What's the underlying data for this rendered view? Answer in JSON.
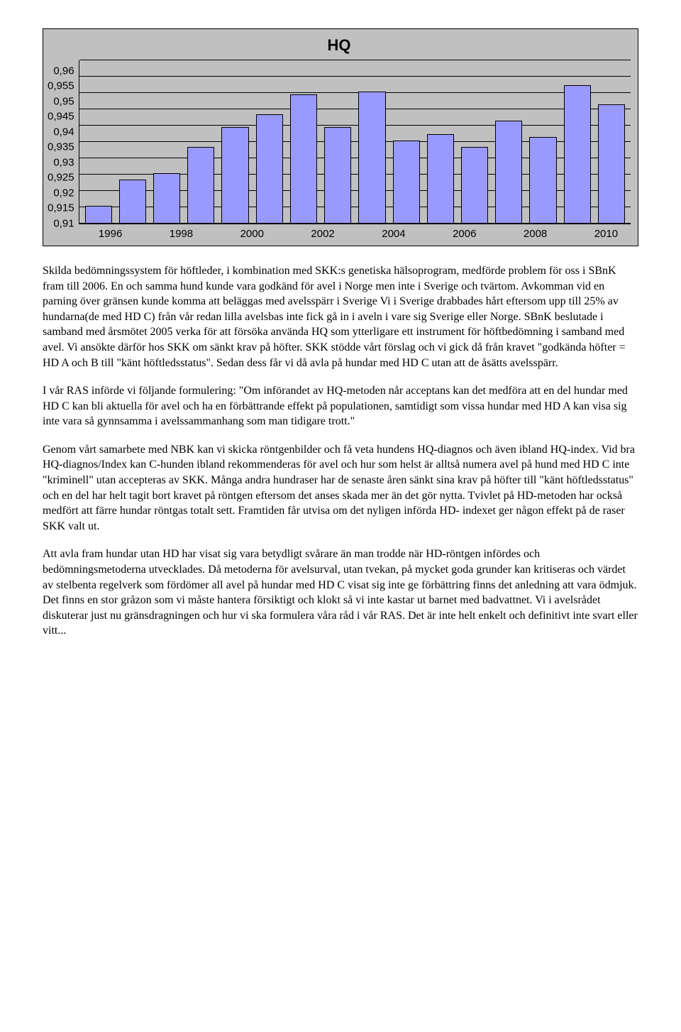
{
  "chart": {
    "title": "HQ",
    "type": "bar",
    "background_color": "#c0c0c0",
    "bar_color": "#9999ff",
    "bar_border": "#000000",
    "grid_color": "#000000",
    "ymin": 0.91,
    "ymax": 0.96,
    "ystep": 0.005,
    "yticks": [
      "0,96",
      "0,955",
      "0,95",
      "0,945",
      "0,94",
      "0,935",
      "0,93",
      "0,925",
      "0,92",
      "0,915",
      "0,91"
    ],
    "xticks": [
      "1996",
      "1998",
      "2000",
      "2002",
      "2004",
      "2006",
      "2008",
      "2010"
    ],
    "title_fontsize": 22,
    "tick_fontsize": 15,
    "values": [
      0.915,
      0.923,
      0.925,
      0.933,
      0.939,
      0.943,
      0.949,
      0.939,
      0.95,
      0.935,
      0.937,
      0.933,
      0.941,
      0.936,
      0.952,
      0.946
    ]
  },
  "paragraphs": {
    "p1": "Skilda bedömningssystem för höftleder, i kombination med SKK:s genetiska hälsoprogram, medförde problem för oss i SBnK fram till 2006. En och samma hund kunde vara godkänd för avel i Norge men inte i Sverige och tvärtom. Avkomman vid en parning över gränsen kunde komma att beläggas med avelsspärr i Sverige Vi i Sverige drabbades hårt eftersom upp till 25% av hundarna(de med HD C) från vår redan lilla avelsbas inte fick gå in i aveln i vare sig Sverige eller Norge.\nSBnK beslutade i samband med årsmötet 2005 verka för att försöka använda HQ som ytterligare ett instrument för höftbedömning i samband med avel. Vi ansökte därför hos SKK om sänkt krav på höfter. SKK stödde vårt förslag och vi gick då från kravet \"godkända höfter = HD A och B till \"känt höftledsstatus\". Sedan dess får vi då avla på hundar med HD C utan att de åsätts avelsspärr.",
    "p2": "I vår RAS införde vi följande formulering:\n\"Om införandet av HQ-metoden når acceptans kan det medföra att en del hundar med HD C kan bli aktuella för avel och ha en förbättrande effekt på populationen, samtidigt som vissa hundar med HD A kan visa sig inte vara så gynnsamma i avelssammanhang som man tidigare trott.\"",
    "p3": "Genom vårt samarbete med NBK kan vi skicka röntgenbilder och få veta hundens HQ-diagnos och även ibland HQ-index. Vid bra HQ-diagnos/Index kan C-hunden ibland rekommenderas för avel och hur som helst är alltså numera avel på hund med HD C inte \"kriminell\" utan accepteras av SKK. Många andra hundraser har de senaste åren sänkt sina krav på höfter till \"känt höftledsstatus\" och en del har helt tagit bort kravet på röntgen eftersom det anses skada mer än det gör nytta. Tvivlet på HD-metoden har också medfört att färre hundar röntgas totalt sett. Framtiden får utvisa om det nyligen införda HD- indexet ger någon effekt på de raser SKK valt ut.",
    "p4": "Att avla fram hundar utan HD har visat sig vara betydligt svårare än man trodde när HD-röntgen infördes och bedömningsmetoderna utvecklades. Då metoderna för avelsurval, utan tvekan, på mycket goda grunder kan kritiseras och värdet av stelbenta regelverk som fördömer all avel på hundar med HD C visat sig inte ge förbättring finns det anledning att vara ödmjuk. Det finns en stor gråzon som vi måste hantera försiktigt och klokt så vi inte kastar ut barnet med badvattnet. Vi i avelsrådet diskuterar just nu gränsdragningen och hur vi ska formulera våra råd i vår RAS. Det är inte helt enkelt och definitivt inte svart eller vitt..."
  }
}
